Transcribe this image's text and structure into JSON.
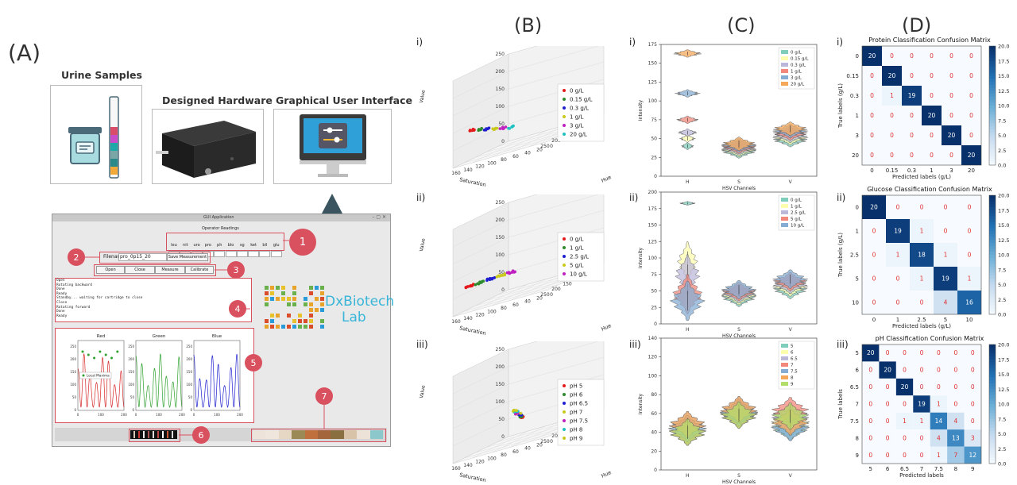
{
  "labels": {
    "A": "(A)",
    "B": "(B)",
    "C": "(C)",
    "D": "(D)"
  },
  "romans": {
    "i": "i)",
    "ii": "ii)",
    "iii": "iii)"
  },
  "panel_a": {
    "cards": [
      {
        "title": "Urine Samples"
      },
      {
        "title": "Designed Hardware"
      },
      {
        "title": "Graphical User Interface"
      }
    ],
    "gui": {
      "window_title": "GUI Application",
      "operator_readings_title": "Operator Readings",
      "reading_fields": [
        "leu",
        "nit",
        "uro",
        "pro",
        "ph",
        "blo",
        "sg",
        "ket",
        "bil",
        "glu"
      ],
      "filename_label": "Filename",
      "filename_value": "pro_0p15_20",
      "save_button": "Save Measurement",
      "buttons": [
        "Open",
        "Close",
        "Measure",
        "Calibrate"
      ],
      "log_lines": [
        "Open",
        "Rotating backward",
        "Done",
        "Ready",
        "Standby... waiting for cartridge to close",
        "Close",
        "Rotating forward",
        "Done",
        "Ready"
      ],
      "plot_titles": [
        "Red",
        "Green",
        "Blue"
      ],
      "local_maxima_legend": "Local Maxima",
      "logo_line1": "DxBiotech",
      "logo_line2": "Lab",
      "badges": [
        "1",
        "2",
        "3",
        "4",
        "5",
        "6",
        "7"
      ],
      "swatch_colors": [
        "#ede3da",
        "#efe6dd",
        "#e6d7c5",
        "#9b8a55",
        "#c0703c",
        "#a4643c",
        "#8a7040",
        "#d8c3a8",
        "#ece2d8",
        "#8cc7cc"
      ]
    }
  },
  "chart_data": [
    {
      "type": "scatter",
      "id": "B-i",
      "projection": "3d",
      "xlabel": "Saturation",
      "ylabel": "Hue",
      "zlabel": "Value",
      "x_ticks": [
        "0",
        "50",
        "100",
        "150",
        "200",
        "250"
      ],
      "y_ticks": [
        "0",
        "20",
        "40",
        "60",
        "80",
        "100",
        "120",
        "140",
        "160"
      ],
      "z_ticks": [
        "0",
        "50",
        "100",
        "150",
        "200",
        "250"
      ],
      "series": [
        {
          "name": "0 g/L",
          "color": "#e41a1c"
        },
        {
          "name": "0.15 g/L",
          "color": "#2e8b2e"
        },
        {
          "name": "0.3 g/L",
          "color": "#1f1fd0"
        },
        {
          "name": "1 g/L",
          "color": "#c8c81e"
        },
        {
          "name": "3 g/L",
          "color": "#c020c0"
        },
        {
          "name": "20 g/L",
          "color": "#20c0c0"
        }
      ]
    },
    {
      "type": "scatter",
      "id": "B-ii",
      "projection": "3d",
      "xlabel": "Saturation",
      "ylabel": "Hue",
      "zlabel": "Value",
      "x_ticks": [
        "0",
        "50",
        "100",
        "150",
        "200",
        "250"
      ],
      "y_ticks": [
        "0",
        "20",
        "40",
        "60",
        "80",
        "100",
        "120",
        "140",
        "160"
      ],
      "z_ticks": [
        "0",
        "50",
        "100",
        "150",
        "200",
        "250"
      ],
      "series": [
        {
          "name": "0 g/L",
          "color": "#e41a1c"
        },
        {
          "name": "1 g/L",
          "color": "#2e8b2e"
        },
        {
          "name": "2.5 g/L",
          "color": "#1f1fd0"
        },
        {
          "name": "5 g/L",
          "color": "#c8c81e"
        },
        {
          "name": "10 g/L",
          "color": "#c020c0"
        }
      ]
    },
    {
      "type": "scatter",
      "id": "B-iii",
      "projection": "3d",
      "xlabel": "Saturation",
      "ylabel": "Hue",
      "zlabel": "Value",
      "x_ticks": [
        "0",
        "50",
        "100",
        "150",
        "200",
        "250"
      ],
      "y_ticks": [
        "0",
        "20",
        "40",
        "60",
        "80",
        "100",
        "120",
        "140",
        "160"
      ],
      "z_ticks": [
        "0",
        "50",
        "100",
        "150",
        "200",
        "250"
      ],
      "series": [
        {
          "name": "pH 5",
          "color": "#e41a1c"
        },
        {
          "name": "pH 6",
          "color": "#2e8b2e"
        },
        {
          "name": "pH 6.5",
          "color": "#1f1fd0"
        },
        {
          "name": "pH 7",
          "color": "#c8c81e"
        },
        {
          "name": "pH 7.5",
          "color": "#c020c0"
        },
        {
          "name": "pH 8",
          "color": "#20c0c0"
        },
        {
          "name": "pH 9",
          "color": "#c8c81e"
        }
      ]
    },
    {
      "type": "violin",
      "id": "C-i",
      "xlabel": "HSV Channels",
      "ylabel": "Intensity",
      "categories": [
        "H",
        "S",
        "V"
      ],
      "ylim": [
        0,
        175
      ],
      "y_ticks": [
        0,
        25,
        50,
        75,
        100,
        125,
        150,
        175
      ],
      "series": [
        {
          "name": "0 g/L",
          "color": "#7fcdbb"
        },
        {
          "name": "0.15 g/L",
          "color": "#fdfdb0"
        },
        {
          "name": "0.3 g/L",
          "color": "#bcb8da"
        },
        {
          "name": "1 g/L",
          "color": "#f2887c"
        },
        {
          "name": "3 g/L",
          "color": "#85acd3"
        },
        {
          "name": "20 g/L",
          "color": "#f5a85a"
        }
      ]
    },
    {
      "type": "violin",
      "id": "C-ii",
      "xlabel": "HSV Channels",
      "ylabel": "Intensity",
      "categories": [
        "H",
        "S",
        "V"
      ],
      "ylim": [
        0,
        200
      ],
      "y_ticks": [
        0,
        25,
        50,
        75,
        100,
        125,
        150,
        175,
        200
      ],
      "series": [
        {
          "name": "0 g/L",
          "color": "#7fcdbb"
        },
        {
          "name": "1 g/L",
          "color": "#fdfdb0"
        },
        {
          "name": "2.5 g/L",
          "color": "#bcb8da"
        },
        {
          "name": "5 g/L",
          "color": "#f2887c"
        },
        {
          "name": "10 g/L",
          "color": "#85acd3"
        }
      ]
    },
    {
      "type": "violin",
      "id": "C-iii",
      "xlabel": "HSV Channels",
      "ylabel": "Intensity",
      "categories": [
        "H",
        "S",
        "V"
      ],
      "ylim": [
        0,
        140
      ],
      "y_ticks": [
        0,
        20,
        40,
        60,
        80,
        100,
        120,
        140
      ],
      "series": [
        {
          "name": "5",
          "color": "#7fcdbb"
        },
        {
          "name": "6",
          "color": "#fdfdb0"
        },
        {
          "name": "6.5",
          "color": "#bcb8da"
        },
        {
          "name": "7",
          "color": "#f2887c"
        },
        {
          "name": "7.5",
          "color": "#85acd3"
        },
        {
          "name": "8",
          "color": "#f5a85a"
        },
        {
          "name": "9",
          "color": "#b4de6c"
        }
      ]
    },
    {
      "type": "heatmap",
      "id": "D-i",
      "title": "Protein Classification Confusion Matrix",
      "xlabel": "Predicted labels (g/L)",
      "ylabel": "True labels (g/L)",
      "labels": [
        "0",
        "0.15",
        "0.3",
        "1",
        "3",
        "20"
      ],
      "matrix": [
        [
          20,
          0,
          0,
          0,
          0,
          0
        ],
        [
          0,
          20,
          0,
          0,
          0,
          0
        ],
        [
          0,
          1,
          19,
          0,
          0,
          0
        ],
        [
          0,
          0,
          0,
          20,
          0,
          0
        ],
        [
          0,
          0,
          0,
          0,
          20,
          0
        ],
        [
          0,
          0,
          0,
          0,
          0,
          20
        ]
      ],
      "colorbar_ticks": [
        "0.0",
        "2.5",
        "5.0",
        "7.5",
        "10.0",
        "12.5",
        "15.0",
        "17.5",
        "20.0"
      ],
      "vmax": 20
    },
    {
      "type": "heatmap",
      "id": "D-ii",
      "title": "Glucose Classification Confusion Matrix",
      "xlabel": "Predicted labels (g/L)",
      "ylabel": "True labels (g/L)",
      "labels": [
        "0",
        "1",
        "2.5",
        "5",
        "10"
      ],
      "matrix": [
        [
          20,
          0,
          0,
          0,
          0
        ],
        [
          0,
          19,
          1,
          0,
          0
        ],
        [
          0,
          1,
          18,
          1,
          0
        ],
        [
          0,
          0,
          1,
          19,
          1
        ],
        [
          0,
          0,
          0,
          4,
          16
        ]
      ],
      "colorbar_ticks": [
        "0.0",
        "2.5",
        "5.0",
        "7.5",
        "10.0",
        "12.5",
        "15.0",
        "17.5",
        "20.0"
      ],
      "vmax": 20
    },
    {
      "type": "heatmap",
      "id": "D-iii",
      "title": "pH Classification Confusion Matrix",
      "xlabel": "Predicted labels",
      "ylabel": "True labels",
      "labels": [
        "5",
        "6",
        "6.5",
        "7",
        "7.5",
        "8",
        "9"
      ],
      "matrix": [
        [
          20,
          0,
          0,
          0,
          0,
          0,
          0
        ],
        [
          0,
          20,
          0,
          0,
          0,
          0,
          0
        ],
        [
          0,
          0,
          20,
          0,
          0,
          0,
          0
        ],
        [
          0,
          0,
          0,
          19,
          1,
          0,
          0
        ],
        [
          0,
          0,
          1,
          1,
          14,
          4,
          0
        ],
        [
          0,
          0,
          0,
          0,
          4,
          13,
          3
        ],
        [
          0,
          0,
          0,
          0,
          1,
          7,
          12
        ]
      ],
      "colorbar_ticks": [
        "0.0",
        "2.5",
        "5.0",
        "7.5",
        "10.0",
        "12.5",
        "15.0",
        "17.5",
        "20.0"
      ],
      "vmax": 20
    }
  ]
}
